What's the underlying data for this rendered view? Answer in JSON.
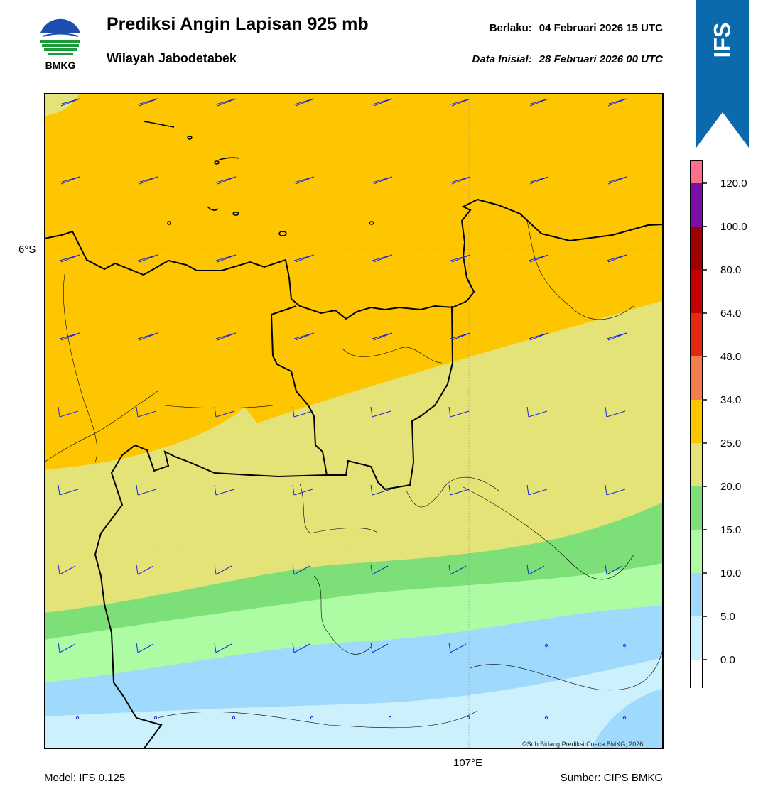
{
  "header": {
    "title": "Prediksi Angin Lapisan 925 mb",
    "subtitle": "Wilayah Jabodetabek",
    "valid_label": "Berlaku:",
    "valid_time": "04 Februari 2026 15 UTC",
    "init_label": "Data Inisial:",
    "init_time": "28 Februari 2026 00 UTC"
  },
  "logo": {
    "icon": "bmkg-logo-icon",
    "text": "BMKG"
  },
  "ribbon": {
    "label": "IFS",
    "color": "#0a6aac"
  },
  "map": {
    "lat_label": "6°S",
    "lon_label": "107°E",
    "credit": "©Sub Bidang Prediksi Cuaca BMKG, 2026"
  },
  "footer": {
    "model": "Model: IFS 0.125",
    "source": "Sumber: CIPS BMKG"
  },
  "legend": {
    "unit_note": "",
    "ticks": [
      "120.0",
      "100.0",
      "80.0",
      "64.0",
      "48.0",
      "34.0",
      "25.0",
      "20.0",
      "15.0",
      "10.0",
      "5.0",
      "0.0"
    ],
    "colors_top_to_bottom": [
      "#ff6e8c",
      "#7b0ea8",
      "#9e0000",
      "#c40000",
      "#e32a10",
      "#f47d4f",
      "#fec600",
      "#e3e378",
      "#7ddf78",
      "#adfca3",
      "#9fd9fb",
      "#cdf0fd",
      "#ffffff"
    ]
  },
  "fill_colors": {
    "0-5": "#cdf0fd",
    "5-10": "#9fd9fb",
    "10-15": "#adfca3",
    "15-20": "#7ddf78",
    "20-25": "#e3e378",
    "25-34": "#fec600"
  },
  "barb_color": "#1a2ad8"
}
